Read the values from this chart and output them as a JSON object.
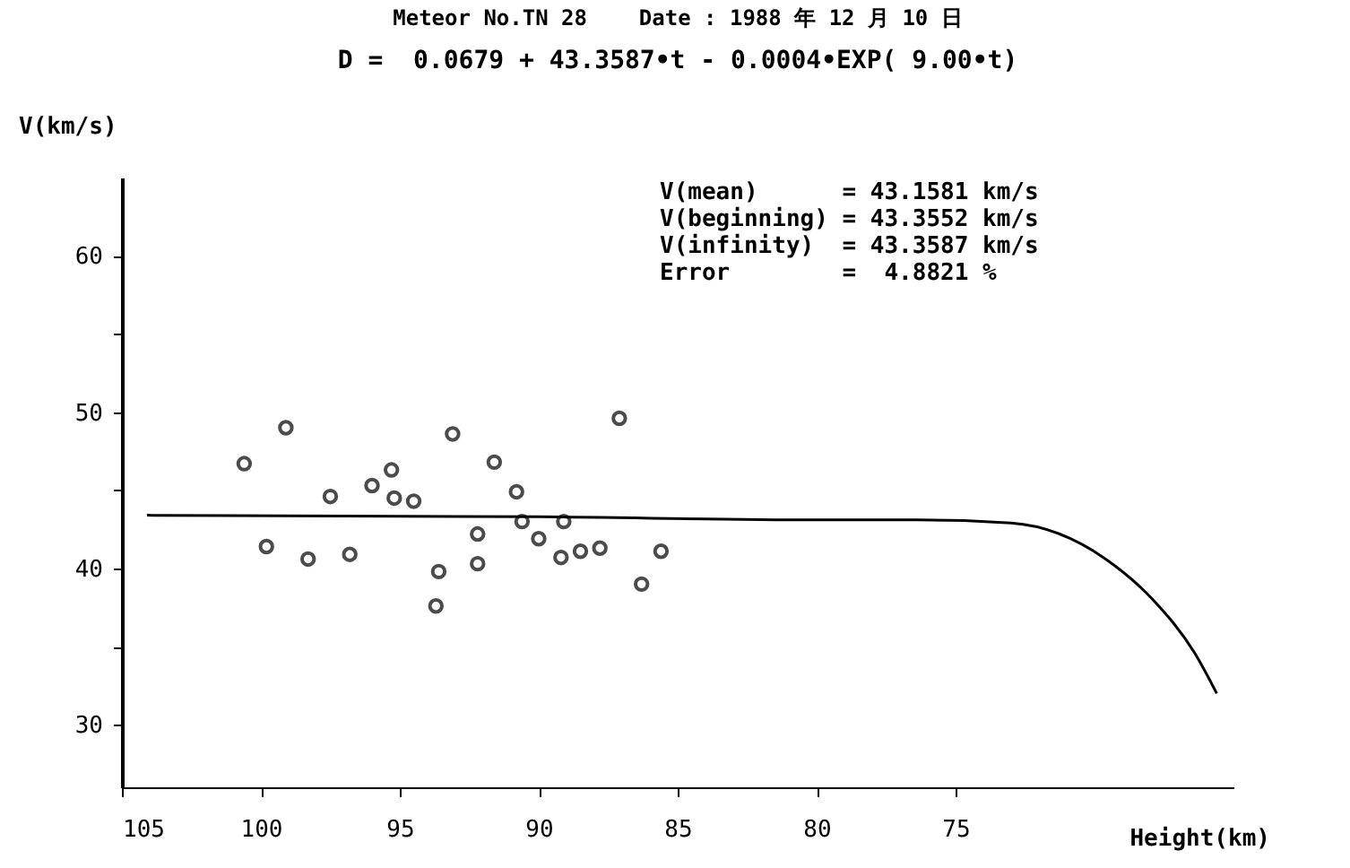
{
  "chart_data": {
    "type": "scatter",
    "title": "Meteor No.TN 28    Date : 1988 年 12 月 10 日",
    "subtitle": "D =  0.0679 + 43.3587•t - 0.0004•EXP( 9.00•t)",
    "xlabel": "Height(km)",
    "ylabel": "V(km/s)",
    "annotations": [
      "V(mean)      = 43.1581 km/s",
      "V(beginning) = 43.3552 km/s",
      "V(infinity)  = 43.3587 km/s",
      "Error        =  4.8821 %"
    ],
    "xlim": [
      105,
      65
    ],
    "xticks": [
      105,
      100,
      95,
      90,
      85,
      80,
      75
    ],
    "ylim": [
      26,
      65
    ],
    "yticks": [
      30,
      {
        "value": 35,
        "label": null
      },
      40,
      {
        "value": 45,
        "label": null
      },
      50,
      {
        "value": 55,
        "label": null
      },
      60
    ],
    "grid": false,
    "series": [
      {
        "marker": "circle",
        "color": "#000000",
        "x": [
          100.6,
          99.8,
          99.1,
          98.3,
          97.5,
          96.8,
          96.0,
          95.3,
          95.2,
          94.5,
          93.7,
          93.6,
          93.1,
          92.2,
          92.2,
          91.6,
          90.8,
          90.6,
          90.0,
          89.2,
          89.1,
          88.5,
          87.8,
          87.1,
          86.3,
          85.6
        ],
        "values": [
          46.7,
          41.4,
          49.0,
          40.6,
          44.6,
          40.9,
          45.3,
          46.3,
          44.5,
          44.3,
          37.6,
          39.8,
          48.6,
          40.3,
          42.2,
          46.8,
          44.9,
          43.0,
          41.9,
          40.7,
          43.0,
          41.1,
          41.3,
          49.6,
          39.0,
          41.1
        ]
      },
      {
        "type": "line",
        "marker": "none",
        "line_style": "solid",
        "color": "#000000",
        "x": [
          104.1,
          90,
          80,
          76.4,
          73,
          69.6,
          67.9,
          66.4,
          65.6
        ],
        "values": [
          43.4,
          43.3,
          43.1,
          43.1,
          42.9,
          40.6,
          38.0,
          34.6,
          32.0
        ]
      }
    ]
  }
}
